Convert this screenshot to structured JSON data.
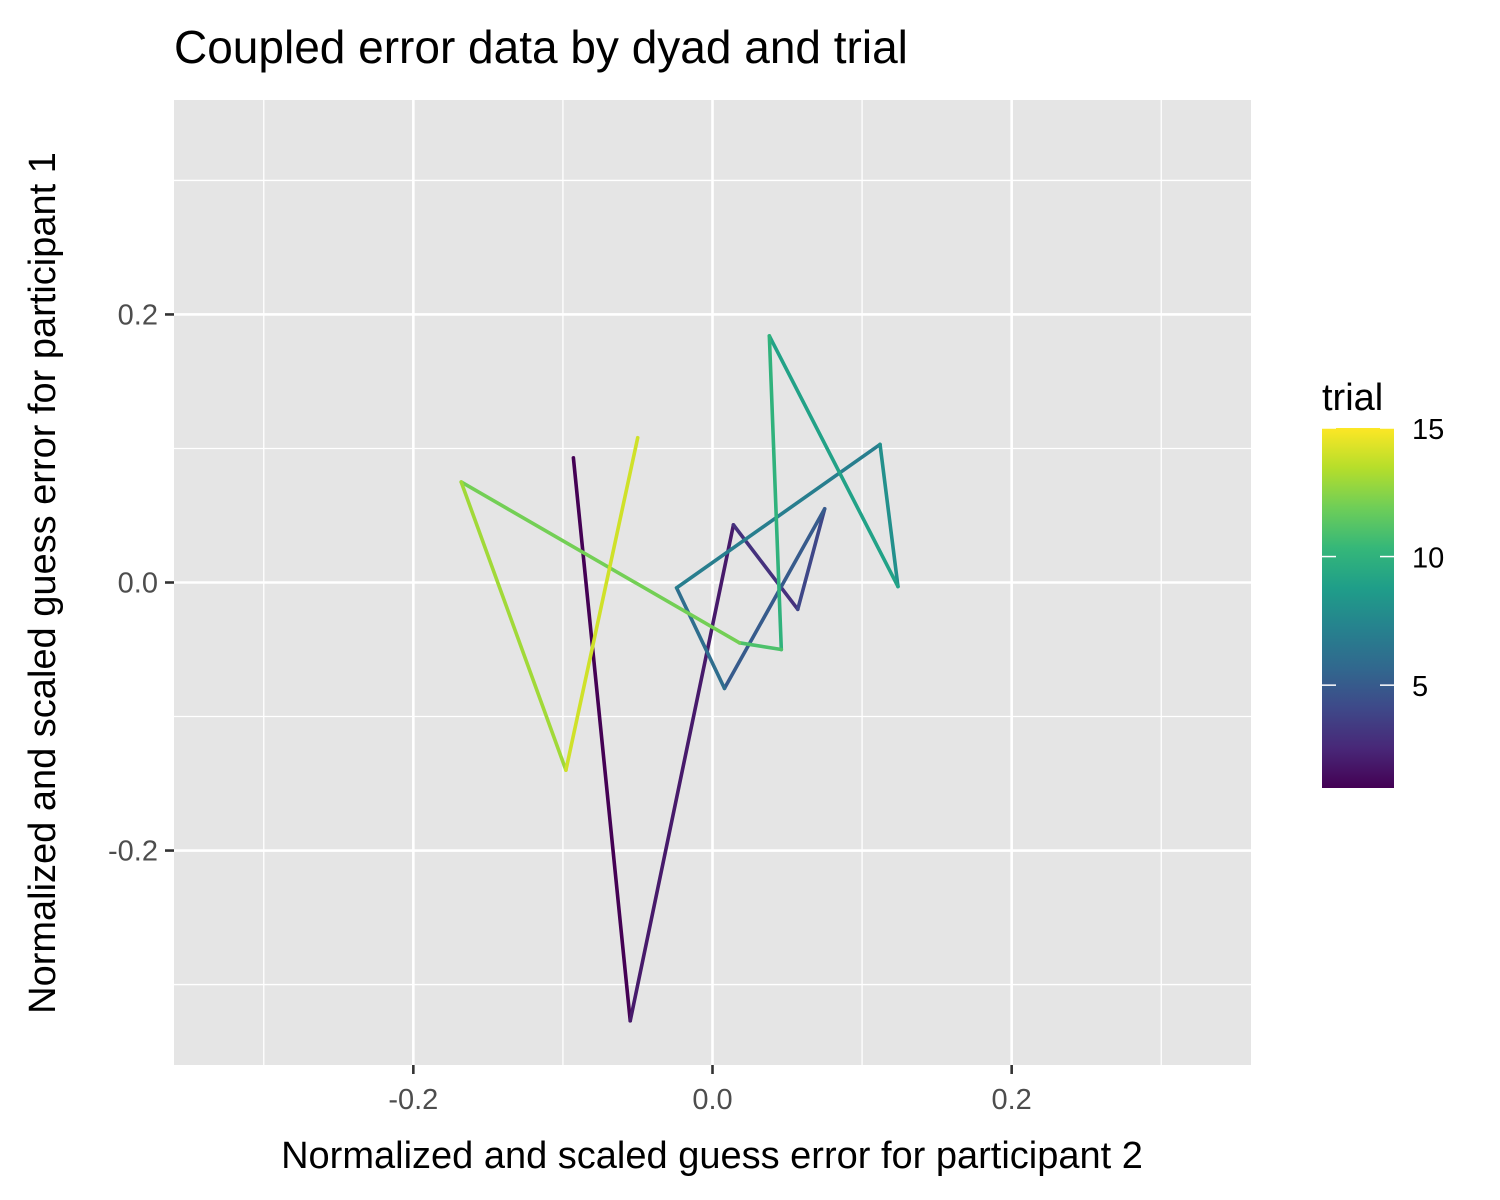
{
  "chart_data": {
    "type": "line",
    "title": "Coupled error data by dyad and trial",
    "xlabel": "Normalized and scaled guess error for participant 2",
    "ylabel": "Normalized and scaled guess error for participant 1",
    "xlim": [
      -0.36,
      0.36
    ],
    "ylim": [
      -0.36,
      0.36
    ],
    "x_ticks": [
      -0.2,
      0.0,
      0.2
    ],
    "x_tick_labels": [
      "-0.2",
      "0.0",
      "0.2"
    ],
    "y_ticks": [
      -0.2,
      0.0,
      0.2
    ],
    "y_tick_labels": [
      "-0.2",
      "0.0",
      "0.2"
    ],
    "grid": true,
    "panel_background": "#e5e5e5",
    "grid_color": "#ffffff",
    "color_scale": {
      "title": "trial",
      "palette": "viridis",
      "range": [
        1,
        15
      ],
      "breaks": [
        5,
        10,
        15
      ],
      "break_labels": [
        "5",
        "10",
        "15"
      ],
      "placement": "right",
      "stops": [
        "#440154",
        "#482878",
        "#3e4989",
        "#31688e",
        "#26828e",
        "#1f9e89",
        "#35b779",
        "#6ece58",
        "#b5de2b",
        "#fde725"
      ]
    },
    "points": [
      {
        "trial": 1,
        "x": -0.093,
        "y": 0.093
      },
      {
        "trial": 2,
        "x": -0.055,
        "y": -0.327
      },
      {
        "trial": 3,
        "x": 0.014,
        "y": 0.043
      },
      {
        "trial": 4,
        "x": 0.057,
        "y": -0.02
      },
      {
        "trial": 5,
        "x": 0.075,
        "y": 0.055
      },
      {
        "trial": 6,
        "x": 0.008,
        "y": -0.079
      },
      {
        "trial": 7,
        "x": -0.024,
        "y": -0.004
      },
      {
        "trial": 8,
        "x": 0.112,
        "y": 0.103
      },
      {
        "trial": 9,
        "x": 0.124,
        "y": -0.003
      },
      {
        "trial": 10,
        "x": 0.038,
        "y": 0.184
      },
      {
        "trial": 11,
        "x": 0.046,
        "y": -0.05
      },
      {
        "trial": 12,
        "x": 0.018,
        "y": -0.045
      },
      {
        "trial": 13,
        "x": -0.168,
        "y": 0.075
      },
      {
        "trial": 14,
        "x": -0.098,
        "y": -0.14
      },
      {
        "trial": 15,
        "x": -0.05,
        "y": 0.108
      }
    ]
  }
}
